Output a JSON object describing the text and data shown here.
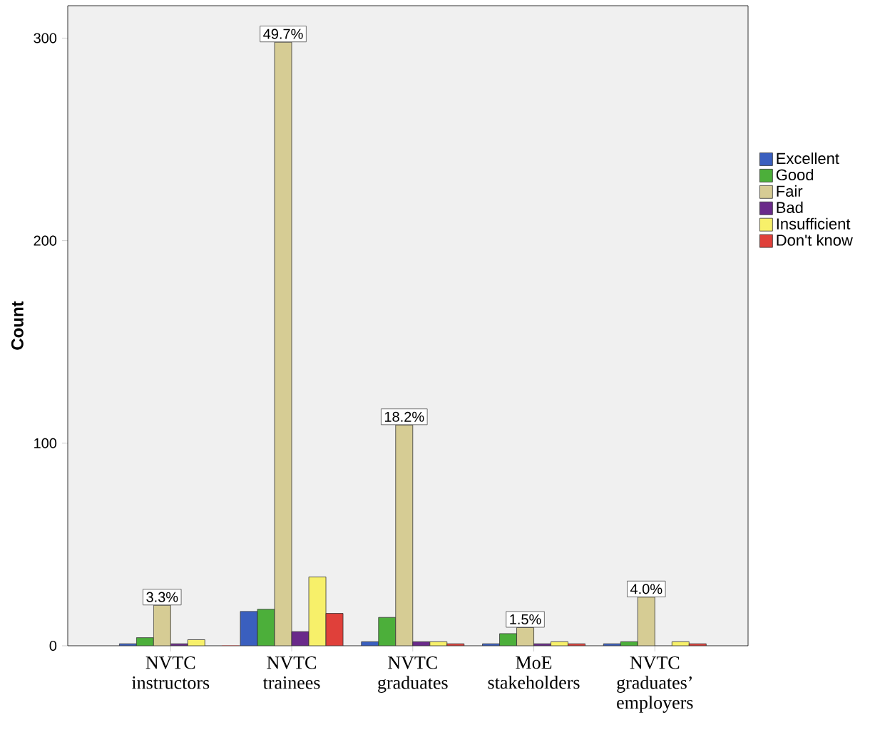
{
  "chart_data": {
    "type": "bar",
    "ylabel": "Count",
    "categories": [
      "NVTC instructors",
      "NVTC trainees",
      "NVTC graduates",
      "MoE stakeholders",
      "NVTC graduates’ employers"
    ],
    "series": [
      {
        "name": "Excellent",
        "color": "#3a5fbf",
        "values": [
          1,
          17,
          2,
          1,
          1
        ]
      },
      {
        "name": "Good",
        "color": "#4caf3a",
        "values": [
          4,
          18,
          14,
          6,
          2
        ]
      },
      {
        "name": "Fair",
        "color": "#d6cc94",
        "values": [
          20,
          298,
          109,
          9,
          24
        ]
      },
      {
        "name": "Bad",
        "color": "#6a2a8a",
        "values": [
          1,
          7,
          2,
          1,
          0
        ]
      },
      {
        "name": "Insufficient",
        "color": "#f7f06a",
        "values": [
          3,
          34,
          2,
          2,
          2
        ]
      },
      {
        "name": "Don't know",
        "color": "#e0403a",
        "values": [
          0,
          16,
          1,
          1,
          1
        ]
      }
    ],
    "annotations": [
      {
        "text": "3.3%",
        "x": "NVTC instructors",
        "y": 20
      },
      {
        "text": "49.7%",
        "x": "NVTC trainees",
        "y": 298
      },
      {
        "text": "18.2%",
        "x": "NVTC graduates",
        "y": 109
      },
      {
        "text": "1.5%",
        "x": "MoE stakeholders",
        "y": 9
      },
      {
        "text": "4.0%",
        "x": "NVTC graduates’ employers",
        "y": 24
      }
    ],
    "ylim": [
      0,
      316
    ],
    "yticks": [
      0,
      100,
      200,
      300
    ],
    "grid": false,
    "legend": "right"
  }
}
